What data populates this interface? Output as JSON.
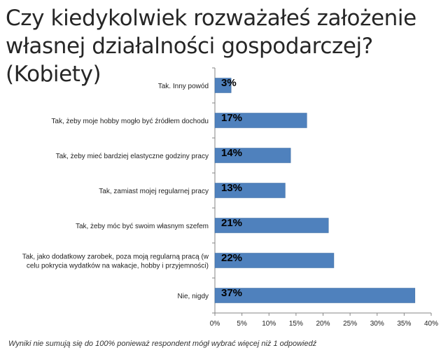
{
  "page": {
    "title": "Czy kiedykolwiek rozważałeś założenie własnej działalności gospodarczej? (Kobiety)",
    "footnote": "Wyniki nie sumują się do 100% ponieważ respondent mógł wybrać więcej niż 1 odpowiedź"
  },
  "chart_data": {
    "type": "bar",
    "orientation": "horizontal",
    "title": "Czy kiedykolwiek rozważałeś założenie własnej działalności gospodarczej? (Kobiety)",
    "categories": [
      [
        "Tak. Inny powód"
      ],
      [
        "Tak, żeby moje hobby mogło być źródłem dochodu"
      ],
      [
        "Tak, żeby mieć bardziej elastyczne godziny pracy"
      ],
      [
        "Tak, zamiast mojej regularnej pracy"
      ],
      [
        "Tak, żeby móc być swoim własnym szefem"
      ],
      [
        "Tak, jako dodatkowy zarobek, poza moją regularną pracą (w",
        "celu pokrycia wydatków na wakacje, hobby i przyjemności)"
      ],
      [
        "Nie, nigdy"
      ]
    ],
    "values": [
      3,
      17,
      14,
      13,
      21,
      22,
      37
    ],
    "data_labels": [
      "3%",
      "17%",
      "14%",
      "13%",
      "21%",
      "22%",
      "37%"
    ],
    "xlim": [
      0,
      40
    ],
    "x_ticks": [
      "0%",
      "5%",
      "10%",
      "15%",
      "20%",
      "25%",
      "30%",
      "35%",
      "40%"
    ],
    "xlabel": "",
    "ylabel": "",
    "bar_color": "#4F81BD",
    "grid": false,
    "legend": "none"
  }
}
